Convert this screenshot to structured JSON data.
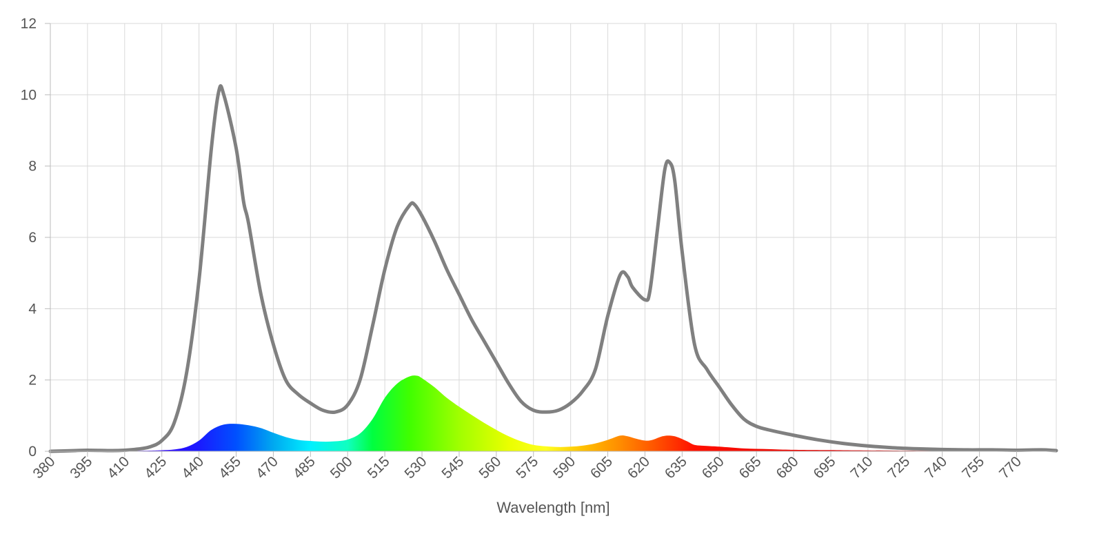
{
  "chart_data": {
    "type": "area",
    "title": "",
    "xlabel": "Wavelength [nm]",
    "ylabel": "",
    "xlim": [
      380,
      786
    ],
    "ylim": [
      0,
      12
    ],
    "grid": true,
    "y_ticks": [
      "0",
      "2",
      "4",
      "6",
      "8",
      "10",
      "12"
    ],
    "x_ticks": [
      "380",
      "395",
      "410",
      "425",
      "440",
      "455",
      "470",
      "485",
      "500",
      "515",
      "530",
      "545",
      "560",
      "575",
      "590",
      "605",
      "620",
      "635",
      "650",
      "665",
      "680",
      "695",
      "710",
      "725",
      "740",
      "755",
      "770"
    ],
    "line_color": "#808080",
    "series": [
      {
        "type": "line",
        "values": [
          [
            380,
            0
          ],
          [
            390,
            0.02
          ],
          [
            395,
            0.03
          ],
          [
            405,
            0.02
          ],
          [
            410,
            0.03
          ],
          [
            415,
            0.06
          ],
          [
            420,
            0.12
          ],
          [
            425,
            0.3
          ],
          [
            430,
            0.8
          ],
          [
            435,
            2.2
          ],
          [
            440,
            4.8
          ],
          [
            445,
            8.5
          ],
          [
            448,
            10.1
          ],
          [
            450,
            10.0
          ],
          [
            455,
            8.5
          ],
          [
            458,
            7.0
          ],
          [
            460,
            6.4
          ],
          [
            465,
            4.4
          ],
          [
            470,
            3.0
          ],
          [
            475,
            2.0
          ],
          [
            480,
            1.6
          ],
          [
            485,
            1.35
          ],
          [
            490,
            1.15
          ],
          [
            495,
            1.1
          ],
          [
            500,
            1.3
          ],
          [
            505,
            2.0
          ],
          [
            510,
            3.5
          ],
          [
            515,
            5.1
          ],
          [
            520,
            6.3
          ],
          [
            525,
            6.9
          ],
          [
            527,
            6.92
          ],
          [
            530,
            6.6
          ],
          [
            535,
            5.9
          ],
          [
            540,
            5.1
          ],
          [
            545,
            4.4
          ],
          [
            550,
            3.7
          ],
          [
            555,
            3.1
          ],
          [
            560,
            2.5
          ],
          [
            565,
            1.9
          ],
          [
            570,
            1.4
          ],
          [
            575,
            1.15
          ],
          [
            580,
            1.1
          ],
          [
            585,
            1.15
          ],
          [
            590,
            1.35
          ],
          [
            595,
            1.7
          ],
          [
            600,
            2.3
          ],
          [
            605,
            3.8
          ],
          [
            610,
            4.95
          ],
          [
            613,
            4.9
          ],
          [
            615,
            4.6
          ],
          [
            620,
            4.25
          ],
          [
            622,
            4.5
          ],
          [
            625,
            6.2
          ],
          [
            628,
            7.9
          ],
          [
            630,
            8.1
          ],
          [
            632,
            7.6
          ],
          [
            635,
            5.6
          ],
          [
            640,
            3.0
          ],
          [
            645,
            2.3
          ],
          [
            650,
            1.8
          ],
          [
            655,
            1.3
          ],
          [
            660,
            0.9
          ],
          [
            665,
            0.7
          ],
          [
            670,
            0.6
          ],
          [
            680,
            0.45
          ],
          [
            690,
            0.32
          ],
          [
            700,
            0.22
          ],
          [
            710,
            0.15
          ],
          [
            720,
            0.1
          ],
          [
            730,
            0.07
          ],
          [
            740,
            0.05
          ],
          [
            750,
            0.04
          ],
          [
            760,
            0.04
          ],
          [
            770,
            0.03
          ],
          [
            780,
            0.04
          ],
          [
            786,
            0.02
          ]
        ]
      },
      {
        "type": "area",
        "values": [
          [
            380,
            0
          ],
          [
            395,
            0.01
          ],
          [
            410,
            0.01
          ],
          [
            420,
            0.02
          ],
          [
            425,
            0.03
          ],
          [
            430,
            0.05
          ],
          [
            435,
            0.12
          ],
          [
            440,
            0.3
          ],
          [
            445,
            0.6
          ],
          [
            450,
            0.75
          ],
          [
            455,
            0.77
          ],
          [
            460,
            0.73
          ],
          [
            465,
            0.65
          ],
          [
            470,
            0.52
          ],
          [
            475,
            0.4
          ],
          [
            480,
            0.32
          ],
          [
            485,
            0.29
          ],
          [
            490,
            0.27
          ],
          [
            495,
            0.28
          ],
          [
            500,
            0.33
          ],
          [
            505,
            0.5
          ],
          [
            510,
            0.9
          ],
          [
            515,
            1.5
          ],
          [
            520,
            1.9
          ],
          [
            525,
            2.1
          ],
          [
            528,
            2.12
          ],
          [
            530,
            2.05
          ],
          [
            535,
            1.8
          ],
          [
            540,
            1.5
          ],
          [
            545,
            1.25
          ],
          [
            550,
            1.02
          ],
          [
            555,
            0.8
          ],
          [
            560,
            0.6
          ],
          [
            565,
            0.42
          ],
          [
            570,
            0.28
          ],
          [
            575,
            0.18
          ],
          [
            580,
            0.14
          ],
          [
            585,
            0.12
          ],
          [
            590,
            0.13
          ],
          [
            595,
            0.16
          ],
          [
            600,
            0.22
          ],
          [
            605,
            0.32
          ],
          [
            610,
            0.44
          ],
          [
            613,
            0.42
          ],
          [
            616,
            0.36
          ],
          [
            620,
            0.3
          ],
          [
            623,
            0.32
          ],
          [
            627,
            0.42
          ],
          [
            630,
            0.44
          ],
          [
            633,
            0.4
          ],
          [
            637,
            0.28
          ],
          [
            640,
            0.18
          ],
          [
            645,
            0.15
          ],
          [
            650,
            0.13
          ],
          [
            660,
            0.08
          ],
          [
            670,
            0.06
          ],
          [
            680,
            0.04
          ],
          [
            700,
            0.03
          ],
          [
            720,
            0.02
          ],
          [
            750,
            0.01
          ],
          [
            786,
            0.01
          ]
        ]
      }
    ],
    "spectrum_gradient": [
      {
        "wl": 380,
        "color": "#6a0dad"
      },
      {
        "wl": 420,
        "color": "#3a00ff"
      },
      {
        "wl": 440,
        "color": "#1a1aff"
      },
      {
        "wl": 455,
        "color": "#0050ff"
      },
      {
        "wl": 470,
        "color": "#00a8f0"
      },
      {
        "wl": 485,
        "color": "#00f0ff"
      },
      {
        "wl": 500,
        "color": "#10ffc0"
      },
      {
        "wl": 510,
        "color": "#00ff40"
      },
      {
        "wl": 525,
        "color": "#40ff00"
      },
      {
        "wl": 545,
        "color": "#a0ff00"
      },
      {
        "wl": 565,
        "color": "#eaff00"
      },
      {
        "wl": 580,
        "color": "#ffff20"
      },
      {
        "wl": 595,
        "color": "#ffc000"
      },
      {
        "wl": 610,
        "color": "#ff8c00"
      },
      {
        "wl": 625,
        "color": "#ff5000"
      },
      {
        "wl": 640,
        "color": "#ff1000"
      },
      {
        "wl": 700,
        "color": "#e00000"
      },
      {
        "wl": 786,
        "color": "#a00000"
      }
    ]
  }
}
